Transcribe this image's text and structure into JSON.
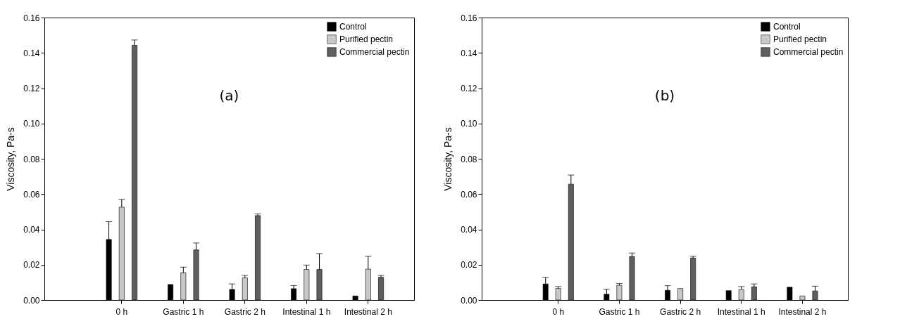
{
  "chart_data": [
    {
      "type": "bar",
      "ylabel": "Viscosity, Pa-s",
      "annotations": [
        "(a)"
      ],
      "categories": [
        "0 h",
        "Gastric 1 h",
        "Gastric 2 h",
        "Intestinal 1 h",
        "Intestinal 2 h"
      ],
      "ylim": [
        0,
        0.16
      ],
      "yticks": [
        {
          "value": 0,
          "label": "0.00"
        },
        {
          "value": 0.02,
          "label": "0.02"
        },
        {
          "value": 0.04,
          "label": "0.04"
        },
        {
          "value": 0.06,
          "label": "0.06"
        },
        {
          "value": 0.08,
          "label": "0.08"
        },
        {
          "value": 0.1,
          "label": "0.10"
        },
        {
          "value": 0.12,
          "label": "0.12"
        },
        {
          "value": 0.14,
          "label": "0.14"
        },
        {
          "value": 0.16,
          "label": "0.16"
        }
      ],
      "grid": false,
      "legend": "top right",
      "series": [
        {
          "name": "Control",
          "color": "#000000",
          "values": [
            0.0343,
            0.0088,
            0.006,
            0.0064,
            0.0023
          ],
          "errors": [
            [
              0.0343,
              0.0444
            ],
            null,
            [
              0.006,
              0.0091
            ],
            [
              0.0064,
              0.0082
            ],
            null
          ]
        },
        {
          "name": "Purified pectin",
          "color": "#c8c8c8",
          "values": [
            0.0526,
            0.0155,
            0.0126,
            0.0173,
            0.0175
          ],
          "errors": [
            [
              0.0526,
              0.057
            ],
            [
              0.0155,
              0.0186
            ],
            [
              0.0126,
              0.0139
            ],
            [
              0.0173,
              0.0198
            ],
            [
              0.0175,
              0.0248
            ]
          ]
        },
        {
          "name": "Commercial pectin",
          "color": "#5f5f5f",
          "values": [
            0.1443,
            0.0284,
            0.0478,
            0.0173,
            0.0129
          ],
          "errors": [
            [
              0.1443,
              0.1473
            ],
            [
              0.0284,
              0.0323
            ],
            [
              0.0478,
              0.0488
            ],
            [
              0.0173,
              0.0263
            ],
            [
              0.0129,
              0.0139
            ]
          ]
        }
      ]
    },
    {
      "type": "bar",
      "ylabel": "Viscosity, Pa-s",
      "annotations": [
        "(b)"
      ],
      "categories": [
        "0 h",
        "Gastric 1 h",
        "Gastric 2 h",
        "Intestinal 1 h",
        "Intestinal 2 h"
      ],
      "ylim": [
        0,
        0.16
      ],
      "yticks": [
        {
          "value": 0,
          "label": "0.00"
        },
        {
          "value": 0.02,
          "label": "0.02"
        },
        {
          "value": 0.04,
          "label": "0.04"
        },
        {
          "value": 0.06,
          "label": "0.06"
        },
        {
          "value": 0.08,
          "label": "0.08"
        },
        {
          "value": 0.1,
          "label": "0.10"
        },
        {
          "value": 0.12,
          "label": "0.12"
        },
        {
          "value": 0.14,
          "label": "0.14"
        },
        {
          "value": 0.16,
          "label": "0.16"
        }
      ],
      "grid": false,
      "legend": "top right",
      "series": [
        {
          "name": "Control",
          "color": "#000000",
          "values": [
            0.0091,
            0.0033,
            0.0055,
            0.0053,
            0.0073
          ],
          "errors": [
            [
              0.0091,
              0.0128
            ],
            [
              0.0033,
              0.0061
            ],
            [
              0.0055,
              0.0081
            ],
            null,
            null
          ]
        },
        {
          "name": "Purified pectin",
          "color": "#c8c8c8",
          "values": [
            0.0065,
            0.0083,
            0.0065,
            0.006,
            0.0023
          ],
          "errors": [
            [
              0.0065,
              0.0076
            ],
            [
              0.0083,
              0.0093
            ],
            null,
            [
              0.006,
              0.0076
            ],
            null
          ]
        },
        {
          "name": "Commercial pectin",
          "color": "#5f5f5f",
          "values": [
            0.0656,
            0.0247,
            0.0238,
            0.0075,
            0.0051
          ],
          "errors": [
            [
              0.0656,
              0.0708
            ],
            [
              0.0247,
              0.0266
            ],
            [
              0.0238,
              0.0248
            ],
            [
              0.0075,
              0.0091
            ],
            [
              0.0051,
              0.0078
            ]
          ]
        }
      ]
    }
  ]
}
